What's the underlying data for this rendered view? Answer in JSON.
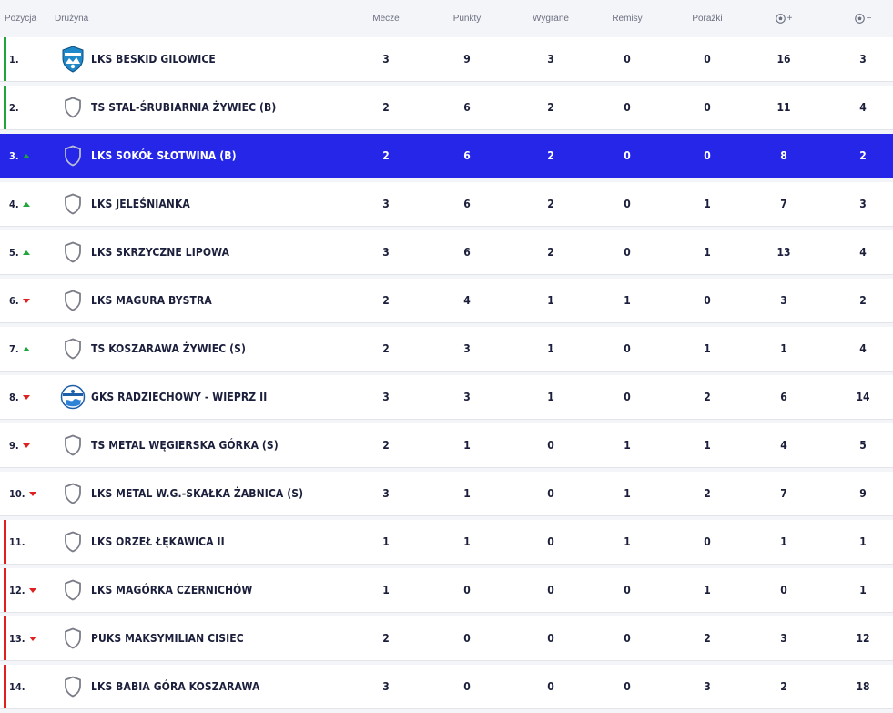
{
  "header": {
    "position": "Pozycja",
    "team": "Drużyna",
    "played": "Mecze",
    "points": "Punkty",
    "wins": "Wygrane",
    "draws": "Remisy",
    "losses": "Porażki",
    "goals_for_icon": "football-icon",
    "goals_for_sign": "+",
    "goals_against_icon": "football-icon",
    "goals_against_sign": "−"
  },
  "colors": {
    "highlight": "#2626e8",
    "promotion": "#1fa53b",
    "relegation": "#e01f1f",
    "trend_up": "#1fa53b",
    "trend_down": "#e01f1f"
  },
  "rows": [
    {
      "pos": "1.",
      "trend": "none",
      "zone": "promotion",
      "crest": "beskid-crest",
      "team": "LKS BESKID GILOWICE",
      "played": "3",
      "points": "9",
      "wins": "3",
      "draws": "0",
      "losses": "0",
      "gf": "16",
      "ga": "3"
    },
    {
      "pos": "2.",
      "trend": "none",
      "zone": "promotion",
      "crest": "shield-icon",
      "team": "TS STAL-ŚRUBIARNIA ŻYWIEC (B)",
      "played": "2",
      "points": "6",
      "wins": "2",
      "draws": "0",
      "losses": "0",
      "gf": "11",
      "ga": "4"
    },
    {
      "pos": "3.",
      "trend": "up",
      "zone": "highlight",
      "crest": "shield-icon",
      "team": "LKS SOKÓŁ SŁOTWINA (B)",
      "played": "2",
      "points": "6",
      "wins": "2",
      "draws": "0",
      "losses": "0",
      "gf": "8",
      "ga": "2"
    },
    {
      "pos": "4.",
      "trend": "up",
      "zone": "none",
      "crest": "shield-icon",
      "team": "LKS JELEŚNIANKA",
      "played": "3",
      "points": "6",
      "wins": "2",
      "draws": "0",
      "losses": "1",
      "gf": "7",
      "ga": "3"
    },
    {
      "pos": "5.",
      "trend": "up",
      "zone": "none",
      "crest": "shield-icon",
      "team": "LKS SKRZYCZNE LIPOWA",
      "played": "3",
      "points": "6",
      "wins": "2",
      "draws": "0",
      "losses": "1",
      "gf": "13",
      "ga": "4"
    },
    {
      "pos": "6.",
      "trend": "down",
      "zone": "none",
      "crest": "shield-icon",
      "team": "LKS MAGURA BYSTRA",
      "played": "2",
      "points": "4",
      "wins": "1",
      "draws": "1",
      "losses": "0",
      "gf": "3",
      "ga": "2"
    },
    {
      "pos": "7.",
      "trend": "up",
      "zone": "none",
      "crest": "shield-icon",
      "team": "TS KOSZARAWA ŻYWIEC (S)",
      "played": "2",
      "points": "3",
      "wins": "1",
      "draws": "0",
      "losses": "1",
      "gf": "1",
      "ga": "4"
    },
    {
      "pos": "8.",
      "trend": "down",
      "zone": "none",
      "crest": "radziechowy-crest",
      "team": "GKS RADZIECHOWY - WIEPRZ II",
      "played": "3",
      "points": "3",
      "wins": "1",
      "draws": "0",
      "losses": "2",
      "gf": "6",
      "ga": "14"
    },
    {
      "pos": "9.",
      "trend": "down",
      "zone": "none",
      "crest": "shield-icon",
      "team": "TS METAL WĘGIERSKA GÓRKA (S)",
      "played": "2",
      "points": "1",
      "wins": "0",
      "draws": "1",
      "losses": "1",
      "gf": "4",
      "ga": "5"
    },
    {
      "pos": "10.",
      "trend": "down",
      "zone": "none",
      "crest": "shield-icon",
      "team": "LKS METAL W.G.-SKAŁKA ŻABNICA (S)",
      "played": "3",
      "points": "1",
      "wins": "0",
      "draws": "1",
      "losses": "2",
      "gf": "7",
      "ga": "9"
    },
    {
      "pos": "11.",
      "trend": "none",
      "zone": "relegation",
      "crest": "shield-icon",
      "team": "LKS ORZEŁ ŁĘKAWICA II",
      "played": "1",
      "points": "1",
      "wins": "0",
      "draws": "1",
      "losses": "0",
      "gf": "1",
      "ga": "1"
    },
    {
      "pos": "12.",
      "trend": "down",
      "zone": "relegation",
      "crest": "shield-icon",
      "team": "LKS MAGÓRKA CZERNICHÓW",
      "played": "1",
      "points": "0",
      "wins": "0",
      "draws": "0",
      "losses": "1",
      "gf": "0",
      "ga": "1"
    },
    {
      "pos": "13.",
      "trend": "down",
      "zone": "relegation",
      "crest": "shield-icon",
      "team": "PUKS MAKSYMILIAN CISIEC",
      "played": "2",
      "points": "0",
      "wins": "0",
      "draws": "0",
      "losses": "2",
      "gf": "3",
      "ga": "12"
    },
    {
      "pos": "14.",
      "trend": "none",
      "zone": "relegation",
      "crest": "shield-icon",
      "team": "LKS BABIA GÓRA KOSZARAWA",
      "played": "3",
      "points": "0",
      "wins": "0",
      "draws": "0",
      "losses": "3",
      "gf": "2",
      "ga": "18"
    }
  ]
}
